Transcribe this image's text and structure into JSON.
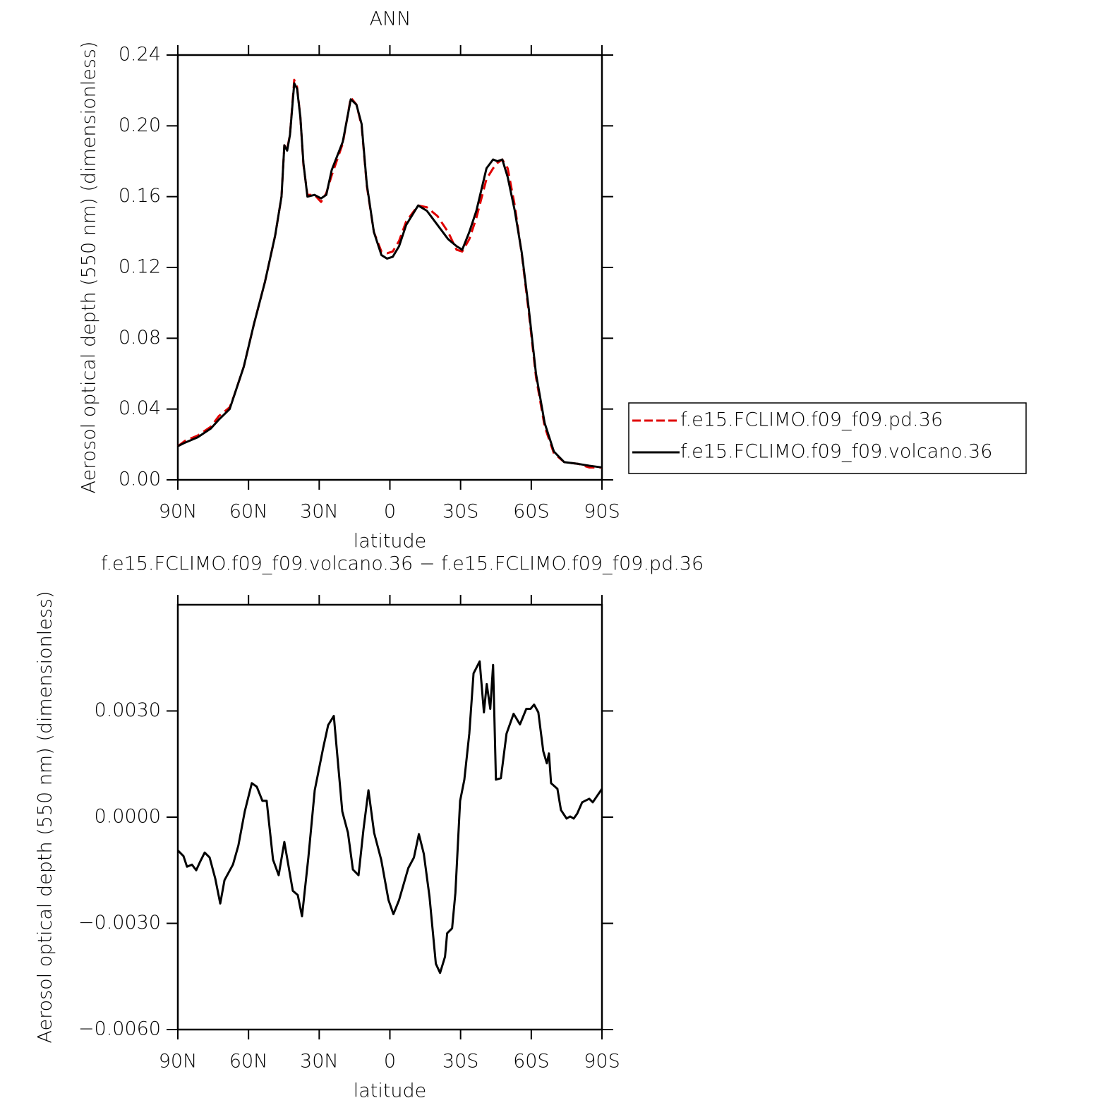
{
  "chart_data": [
    {
      "type": "line",
      "title": "ANN",
      "xlabel": "latitude",
      "ylabel": "Aerosol optical depth (550 nm) (dimensionless)",
      "xlim": [
        90,
        -90
      ],
      "ylim": [
        0,
        0.24
      ],
      "xticks": [
        {
          "value": 90,
          "label": "90N"
        },
        {
          "value": 60,
          "label": "60N"
        },
        {
          "value": 30,
          "label": "30N"
        },
        0,
        {
          "value": -30,
          "label": "30S"
        },
        {
          "value": -60,
          "label": "60S"
        },
        {
          "value": -90,
          "label": "90S"
        }
      ],
      "yticks": [
        {
          "value": 0,
          "label": "0.00"
        },
        0.04,
        0.08,
        0.12,
        0.16,
        {
          "value": 0.2,
          "label": "0.20"
        },
        0.24
      ],
      "legend": "right",
      "x": [
        90,
        87,
        81.6,
        76,
        72.6,
        68,
        66,
        62,
        57.7,
        53,
        48.7,
        46,
        44.8,
        43.6,
        42.4,
        40.6,
        39.4,
        38,
        36.7,
        35,
        32,
        29.2,
        27,
        24.7,
        20,
        16.6,
        14.2,
        12,
        9.8,
        6.8,
        3.6,
        1.2,
        -1.2,
        -3.9,
        -6.9,
        -12,
        -15.7,
        -20.2,
        -24.7,
        -28.3,
        -30.7,
        -33.7,
        -36.7,
        -41,
        -43.8,
        -45.6,
        -47.7,
        -50,
        -53,
        -56,
        -59,
        -62,
        -65.7,
        -69.6,
        -74,
        -80,
        -84.6,
        -90
      ],
      "series": [
        {
          "name": "f.e15.FCLIMO.f09_f09.pd.36",
          "color": "#e00000",
          "dash": true,
          "values": [
            0.019,
            0.022,
            0.025,
            0.03,
            0.036,
            0.041,
            0.048,
            0.064,
            0.088,
            0.112,
            0.138,
            0.16,
            0.189,
            0.187,
            0.195,
            0.226,
            0.222,
            0.205,
            0.178,
            0.161,
            0.161,
            0.157,
            0.162,
            0.172,
            0.19,
            0.216,
            0.212,
            0.2,
            0.166,
            0.14,
            0.129,
            0.128,
            0.129,
            0.135,
            0.146,
            0.155,
            0.154,
            0.149,
            0.14,
            0.13,
            0.129,
            0.136,
            0.148,
            0.17,
            0.176,
            0.179,
            0.181,
            0.176,
            0.155,
            0.127,
            0.094,
            0.058,
            0.03,
            0.015,
            0.01,
            0.009,
            0.007,
            0.007
          ]
        },
        {
          "name": "f.e15.FCLIMO.f09_f09.volcano.36",
          "color": "#000000",
          "dash": false,
          "values": [
            0.019,
            0.021,
            0.024,
            0.029,
            0.034,
            0.04,
            0.048,
            0.064,
            0.088,
            0.112,
            0.138,
            0.16,
            0.189,
            0.186,
            0.195,
            0.224,
            0.221,
            0.205,
            0.179,
            0.16,
            0.161,
            0.159,
            0.161,
            0.175,
            0.191,
            0.215,
            0.212,
            0.201,
            0.167,
            0.14,
            0.127,
            0.125,
            0.126,
            0.132,
            0.144,
            0.155,
            0.152,
            0.144,
            0.136,
            0.132,
            0.13,
            0.14,
            0.152,
            0.176,
            0.181,
            0.18,
            0.181,
            0.171,
            0.152,
            0.128,
            0.096,
            0.06,
            0.032,
            0.016,
            0.01,
            0.009,
            0.008,
            0.007
          ]
        }
      ]
    },
    {
      "type": "line",
      "title": "f.e15.FCLIMO.f09_f09.volcano.36 − f.e15.FCLIMO.f09_f09.pd.36",
      "xlabel": "latitude",
      "ylabel": "Aerosol optical depth (550 nm) (dimensionless)",
      "xlim": [
        90,
        -90
      ],
      "ylim": [
        -0.006,
        0.006
      ],
      "xticks": [
        {
          "value": 90,
          "label": "90N"
        },
        {
          "value": 60,
          "label": "60N"
        },
        {
          "value": 30,
          "label": "30N"
        },
        0,
        {
          "value": -30,
          "label": "30S"
        },
        {
          "value": -60,
          "label": "60S"
        },
        {
          "value": -90,
          "label": "90S"
        }
      ],
      "yticks": [
        {
          "value": -0.006,
          "label": "−0.0060"
        },
        {
          "value": -0.003,
          "label": "−0.0030"
        },
        {
          "value": 0,
          "label": "0.0000"
        },
        {
          "value": 0.003,
          "label": "0.0030"
        }
      ],
      "color": "#000000",
      "x": [
        90,
        87.6,
        86.1,
        84,
        82.2,
        80.7,
        78.6,
        76.5,
        74.1,
        72,
        70.2,
        66.6,
        64.3,
        61.6,
        58.6,
        56.5,
        54.1,
        52.3,
        49.6,
        47.2,
        44.8,
        41.2,
        39.1,
        37.3,
        34.6,
        31.9,
        28.3,
        26.2,
        23.8,
        20.2,
        17.8,
        15.7,
        13.3,
        11.2,
        9.1,
        6.7,
        3.7,
        0.6,
        -1.5,
        -3.9,
        -7.8,
        -10.2,
        -12.3,
        -14.4,
        -16.8,
        -19.5,
        -21.3,
        -23.4,
        -24.3,
        -26.4,
        -27.8,
        -29.8,
        -31.6,
        -33.7,
        -35.5,
        -38.1,
        -39.9,
        -41.1,
        -42.6,
        -43.8,
        -45,
        -47.1,
        -49.5,
        -52.5,
        -55.2,
        -57.9,
        -59.7,
        -61.2,
        -63,
        -65.1,
        -66.6,
        -67.5,
        -68.4,
        -71.1,
        -72.6,
        -75,
        -76.5,
        -78,
        -79.5,
        -81.6,
        -84.6,
        -86.1,
        -90
      ],
      "values": [
        -0.00094,
        -0.0011,
        -0.0014,
        -0.00134,
        -0.0015,
        -0.00128,
        -0.001,
        -0.00114,
        -0.00174,
        -0.00244,
        -0.00178,
        -0.00134,
        -0.0008,
        0.00016,
        0.00096,
        0.00086,
        0.00046,
        0.00046,
        -0.0012,
        -0.00164,
        -0.0007,
        -0.00208,
        -0.0022,
        -0.0028,
        -0.00114,
        0.00076,
        0.00196,
        0.0026,
        0.00286,
        0.00016,
        -0.00044,
        -0.00148,
        -0.00164,
        -0.00034,
        0.00076,
        -0.00044,
        -0.0012,
        -0.00234,
        -0.00274,
        -0.00234,
        -0.00144,
        -0.00114,
        -0.00048,
        -0.00104,
        -0.00224,
        -0.00414,
        -0.0044,
        -0.00394,
        -0.00328,
        -0.00314,
        -0.00214,
        0.00046,
        0.00106,
        0.00236,
        0.00406,
        0.0044,
        0.00296,
        0.00376,
        0.00306,
        0.0043,
        0.00106,
        0.0011,
        0.00236,
        0.00292,
        0.00262,
        0.00306,
        0.00306,
        0.00318,
        0.00296,
        0.00186,
        0.00152,
        0.0018,
        0.00096,
        0.0008,
        0.0002,
        -4e-05,
        2e-05,
        -4e-05,
        0.0001,
        0.00042,
        0.00052,
        0.00042,
        0.0008
      ]
    }
  ]
}
